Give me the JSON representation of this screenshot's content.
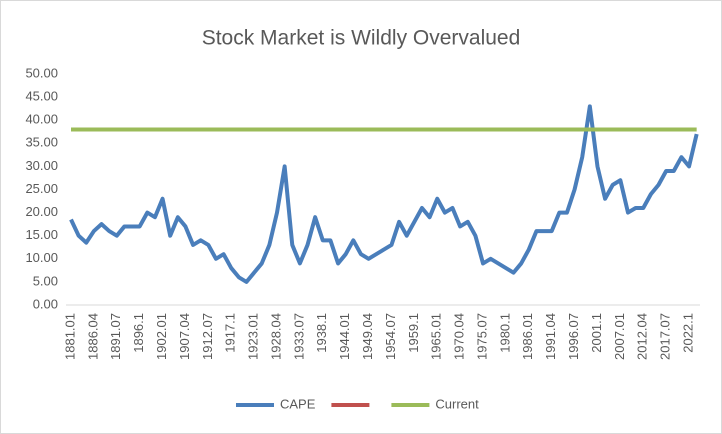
{
  "chart_data": {
    "type": "line",
    "title": "Stock Market is Wildly Overvalued",
    "categories": [
      "1881.01",
      null,
      null,
      "1886.04",
      null,
      null,
      "1891.07",
      null,
      null,
      "1896.1",
      null,
      null,
      "1902.01",
      null,
      null,
      "1907.04",
      null,
      null,
      "1912.07",
      null,
      null,
      "1917.1",
      null,
      null,
      "1923.01",
      null,
      null,
      "1928.04",
      null,
      null,
      "1933.07",
      null,
      null,
      "1938.1",
      null,
      null,
      "1944.01",
      null,
      null,
      "1949.04",
      null,
      null,
      "1954.07",
      null,
      null,
      "1959.1",
      null,
      null,
      "1965.01",
      null,
      null,
      "1970.04",
      null,
      null,
      "1975.07",
      null,
      null,
      "1980.1",
      null,
      null,
      "1986.01",
      null,
      null,
      "1991.04",
      null,
      null,
      "1996.07",
      null,
      null,
      "2001.1",
      null,
      null,
      "2007.01",
      null,
      null,
      "2012.04",
      null,
      null,
      "2017.07",
      null,
      null,
      "2022.1",
      null
    ],
    "series": [
      {
        "name": "CAPE",
        "color": "#4a7ebb",
        "values": [
          18.5,
          15,
          13.5,
          16,
          17.5,
          16,
          15,
          17,
          17,
          17,
          20,
          19,
          23,
          15,
          19,
          17,
          13,
          14,
          13,
          10,
          11,
          8,
          6,
          5,
          7,
          9,
          13,
          20,
          30,
          13,
          9,
          13,
          19,
          14,
          14,
          9,
          11,
          14,
          11,
          10,
          11,
          12,
          13,
          18,
          15,
          18,
          21,
          19,
          23,
          20,
          21,
          17,
          18,
          15,
          9,
          10,
          9,
          8,
          7,
          9,
          12,
          16,
          16,
          16,
          20,
          20,
          25,
          32,
          43,
          30,
          23,
          26,
          27,
          20,
          21,
          21,
          24,
          26,
          29,
          29,
          32,
          30,
          37
        ]
      },
      {
        "color": "#c0504d",
        "values": [
          null,
          null,
          null,
          null,
          null,
          null,
          null,
          null,
          null,
          null,
          null,
          null,
          null,
          null,
          null,
          null,
          null,
          null,
          null,
          null,
          null,
          null,
          null,
          null,
          null,
          null,
          null,
          null,
          null,
          null,
          null,
          null,
          null,
          null,
          null,
          null,
          null,
          null,
          null,
          null,
          null,
          null,
          null,
          null,
          null,
          null,
          null,
          null,
          null,
          null,
          null,
          null,
          null,
          null,
          null,
          null,
          null,
          null,
          null,
          null,
          null,
          null,
          null,
          null,
          null,
          null,
          null,
          null,
          null,
          null,
          null,
          null,
          null,
          null,
          null,
          null,
          null,
          null,
          null,
          null,
          null,
          null,
          null
        ]
      },
      {
        "name": "Current",
        "color": "#9bbb59",
        "values": [
          38,
          38,
          38,
          38,
          38,
          38,
          38,
          38,
          38,
          38,
          38,
          38,
          38,
          38,
          38,
          38,
          38,
          38,
          38,
          38,
          38,
          38,
          38,
          38,
          38,
          38,
          38,
          38,
          38,
          38,
          38,
          38,
          38,
          38,
          38,
          38,
          38,
          38,
          38,
          38,
          38,
          38,
          38,
          38,
          38,
          38,
          38,
          38,
          38,
          38,
          38,
          38,
          38,
          38,
          38,
          38,
          38,
          38,
          38,
          38,
          38,
          38,
          38,
          38,
          38,
          38,
          38,
          38,
          38,
          38,
          38,
          38,
          38,
          38,
          38,
          38,
          38,
          38,
          38,
          38,
          38,
          38,
          38
        ]
      }
    ],
    "ylim": [
      0,
      50
    ],
    "yticks": [
      {
        "value": 0,
        "label": "0.00"
      },
      {
        "value": 5,
        "label": "5.00"
      },
      {
        "value": 10,
        "label": "10.00"
      },
      {
        "value": 15,
        "label": "15.00"
      },
      {
        "value": 20,
        "label": "20.00"
      },
      {
        "value": 25,
        "label": "25.00"
      },
      {
        "value": 30,
        "label": "30.00"
      },
      {
        "value": 35,
        "label": "35.00"
      },
      {
        "value": 40,
        "label": "40.00"
      },
      {
        "value": 45,
        "label": "45.00"
      },
      {
        "value": 50,
        "label": "50.00"
      }
    ],
    "grid": false,
    "legend": "bottom"
  }
}
